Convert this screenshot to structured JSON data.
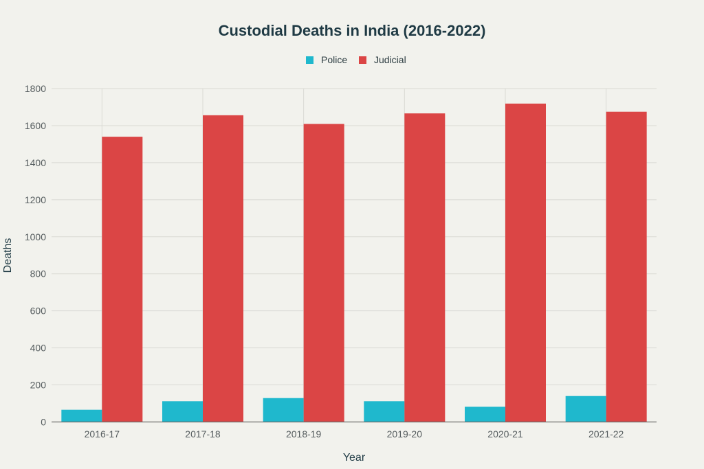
{
  "chart_data": {
    "type": "bar",
    "title": "Custodial Deaths in India (2016-2022)",
    "xlabel": "Year",
    "ylabel": "Deaths",
    "categories": [
      "2016-17",
      "2017-18",
      "2018-19",
      "2019-20",
      "2020-21",
      "2021-22"
    ],
    "series": [
      {
        "name": "Police",
        "color": "#1fb8cd",
        "values": [
          66,
          112,
          129,
          112,
          82,
          140
        ]
      },
      {
        "name": "Judicial",
        "color": "#db4545",
        "values": [
          1540,
          1656,
          1609,
          1666,
          1719,
          1675
        ]
      }
    ],
    "ylim": [
      0,
      1800
    ],
    "yticks": [
      0,
      200,
      400,
      600,
      800,
      1000,
      1200,
      1400,
      1600,
      1800
    ],
    "grid": true,
    "legend_position": "top-center"
  }
}
